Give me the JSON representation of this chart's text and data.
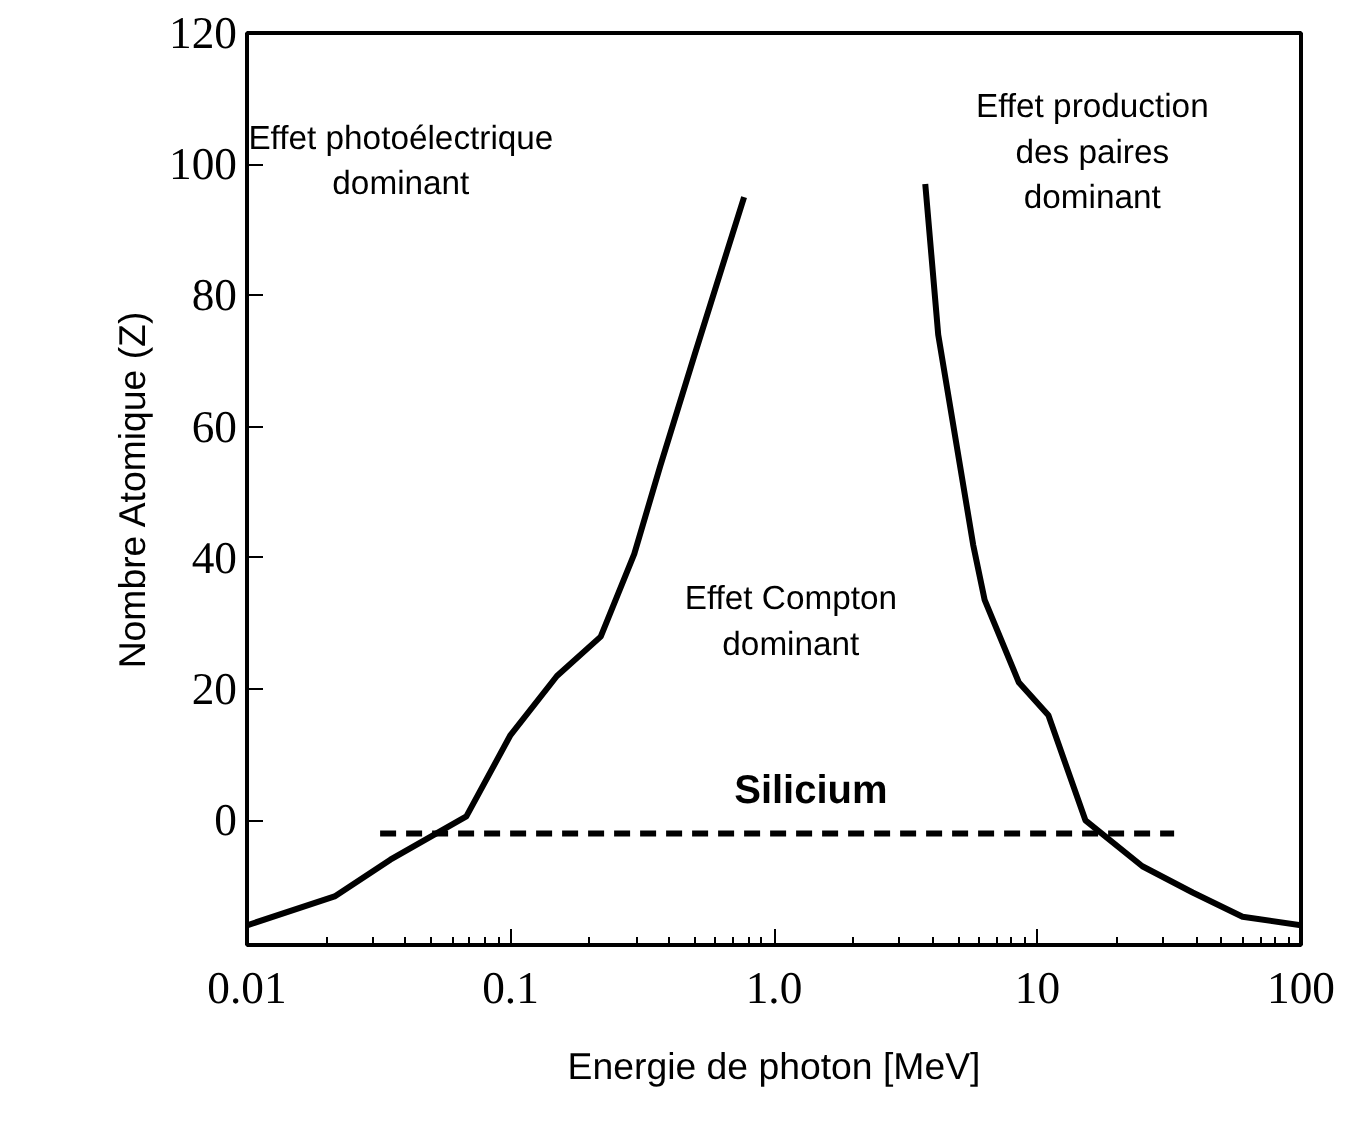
{
  "chart_data": {
    "type": "line",
    "xlabel": "Energie de photon [MeV]",
    "ylabel": "Nombre Atomique (Z)",
    "log": "x",
    "xlim": [
      0.01,
      100
    ],
    "ylim": [
      -19,
      120
    ],
    "grid": false,
    "marker": "none",
    "xticks": [
      0.01,
      0.1,
      {
        "value": 1,
        "label": "1.0"
      },
      10,
      100
    ],
    "yticks": [
      0,
      20,
      40,
      60,
      80,
      100,
      120
    ],
    "series": [
      {
        "color": "#000000",
        "line_style": "solid",
        "x": [
          0.01,
          0.0215,
          0.035,
          0.068,
          0.1,
          0.15,
          0.22,
          0.295,
          0.37,
          0.5,
          0.77
        ],
        "values": [
          -16,
          -11.6,
          -6,
          0.6,
          13,
          22,
          28,
          40.6,
          54,
          71,
          95
        ]
      },
      {
        "color": "#000000",
        "line_style": "solid",
        "x": [
          3.75,
          4.2,
          5.7,
          6.3,
          8.5,
          11,
          15.2,
          25,
          38.8,
          60,
          100
        ],
        "values": [
          97,
          74,
          42,
          33.6,
          21,
          16,
          0,
          -7,
          -11,
          -14.7,
          -16
        ]
      },
      {
        "color": "#000000",
        "line_style": "dashed",
        "x": [
          0.032,
          33
        ],
        "values": [
          -2,
          -2
        ]
      }
    ],
    "annotations": [
      "Effet photoélectrique\ndominant",
      "Effet production\ndes paires\ndominant",
      "Effet Compton\ndominant",
      "Silicium"
    ]
  }
}
